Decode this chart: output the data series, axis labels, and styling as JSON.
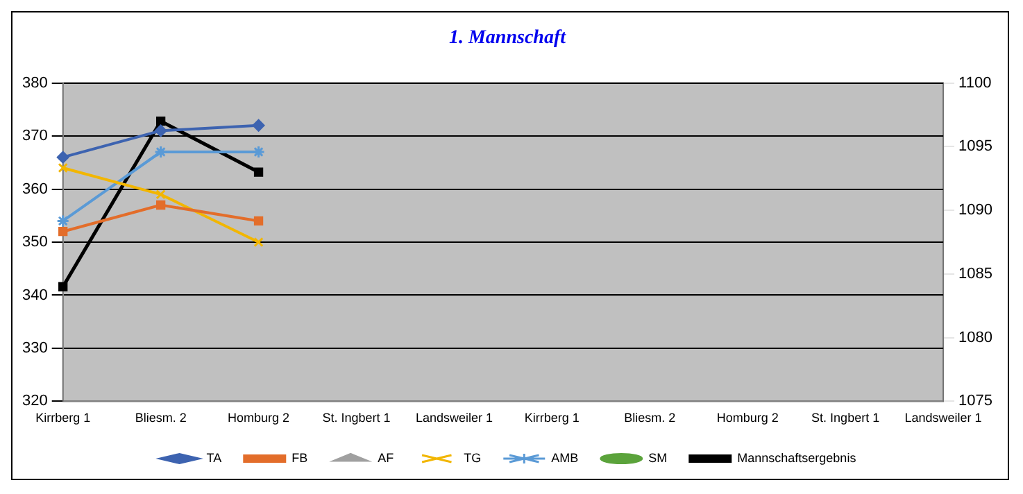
{
  "chart_data": {
    "type": "line",
    "title": "1. Mannschaft",
    "categories": [
      "Kirrberg 1",
      "Bliesm. 2",
      "Homburg 2",
      "St. Ingbert 1",
      "Landsweiler 1",
      "Kirrberg 1",
      "Bliesm. 2",
      "Homburg 2",
      "St. Ingbert 1",
      "Landsweiler 1"
    ],
    "series": [
      {
        "name": "TA",
        "color": "#3d63b0",
        "marker": "diamond",
        "values": [
          366,
          371,
          372,
          null,
          null,
          null,
          null,
          null,
          null,
          null
        ]
      },
      {
        "name": "FB",
        "color": "#e36d2a",
        "marker": "square",
        "values": [
          352,
          357,
          354,
          null,
          null,
          null,
          null,
          null,
          null,
          null
        ]
      },
      {
        "name": "AF",
        "color": "#a0a0a0",
        "marker": "triangle",
        "values": [
          null,
          null,
          null,
          null,
          null,
          null,
          null,
          null,
          null,
          null
        ]
      },
      {
        "name": "TG",
        "color": "#f2b600",
        "marker": "cross",
        "values": [
          364,
          359,
          350,
          null,
          null,
          null,
          null,
          null,
          null,
          null
        ]
      },
      {
        "name": "AMB",
        "color": "#5a9ad6",
        "marker": "cross",
        "values": [
          354,
          367,
          367,
          null,
          null,
          null,
          null,
          null,
          null,
          null
        ]
      },
      {
        "name": "SM",
        "color": "#5ba33b",
        "marker": "circle",
        "values": [
          null,
          null,
          null,
          null,
          null,
          null,
          null,
          null,
          null,
          null
        ]
      },
      {
        "name": "Mannschaftsergebnis",
        "color": "#000000",
        "marker": "square",
        "axis": "y2",
        "values": [
          1084,
          1097,
          1093,
          null,
          null,
          null,
          null,
          null,
          null,
          null
        ]
      }
    ],
    "ylim": [
      320,
      380
    ],
    "yticks": [
      320,
      330,
      340,
      350,
      360,
      370,
      380
    ],
    "y2lim": [
      1075,
      1100
    ],
    "y2ticks": [
      1075,
      1080,
      1085,
      1090,
      1095,
      1100
    ],
    "grid": "y",
    "legend": "bottom"
  }
}
